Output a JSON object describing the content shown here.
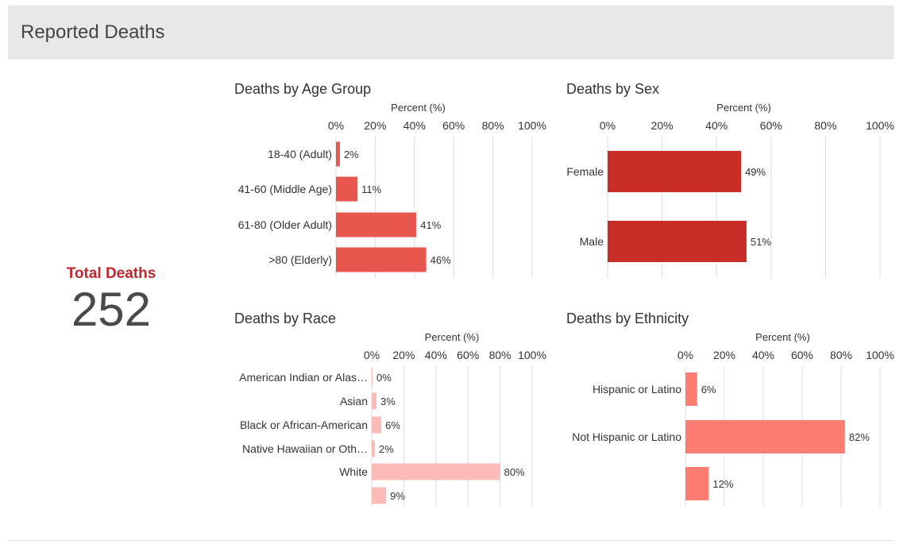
{
  "header": {
    "title": "Reported Deaths"
  },
  "total": {
    "label": "Total Deaths",
    "value": "252"
  },
  "chart_data": [
    {
      "type": "bar",
      "orientation": "horizontal",
      "title": "Deaths by Age Group",
      "xlabel": "Percent (%)",
      "xlim": [
        0,
        100
      ],
      "ticks": [
        "0%",
        "20%",
        "40%",
        "60%",
        "80%",
        "100%"
      ],
      "categories": [
        "18-40 (Adult)",
        "41-60 (Middle Age)",
        "61-80 (Older Adult)",
        ">80 (Elderly)"
      ],
      "values": [
        2,
        11,
        41,
        46
      ],
      "value_labels": [
        "2%",
        "11%",
        "41%",
        "46%"
      ],
      "color": "#e8574e",
      "grid": true
    },
    {
      "type": "bar",
      "orientation": "horizontal",
      "title": "Deaths by Sex",
      "xlabel": "Percent (%)",
      "xlim": [
        0,
        100
      ],
      "ticks": [
        "0%",
        "20%",
        "40%",
        "60%",
        "80%",
        "100%"
      ],
      "categories": [
        "Female",
        "Male"
      ],
      "values": [
        49,
        51
      ],
      "value_labels": [
        "49%",
        "51%"
      ],
      "color": "#c92d27",
      "grid": true
    },
    {
      "type": "bar",
      "orientation": "horizontal",
      "title": "Deaths by Race",
      "xlabel": "Percent (%)",
      "xlim": [
        0,
        100
      ],
      "ticks": [
        "0%",
        "20%",
        "40%",
        "60%",
        "80%",
        "100%"
      ],
      "categories": [
        "American Indian or Alas…",
        "Asian",
        "Black or African-American",
        "Native Hawaiian or Oth…",
        "White",
        ""
      ],
      "values": [
        0,
        3,
        6,
        2,
        80,
        9
      ],
      "value_labels": [
        "0%",
        "3%",
        "6%",
        "2%",
        "80%",
        "9%"
      ],
      "color": "#fbbcb8",
      "grid": true
    },
    {
      "type": "bar",
      "orientation": "horizontal",
      "title": "Deaths by Ethnicity",
      "xlabel": "Percent (%)",
      "xlim": [
        0,
        100
      ],
      "ticks": [
        "0%",
        "20%",
        "40%",
        "60%",
        "80%",
        "100%"
      ],
      "categories": [
        "Hispanic or Latino",
        "Not Hispanic or Latino",
        ""
      ],
      "values": [
        6,
        82,
        12
      ],
      "value_labels": [
        "6%",
        "82%",
        "12%"
      ],
      "color": "#fd7d72",
      "grid": true
    }
  ]
}
